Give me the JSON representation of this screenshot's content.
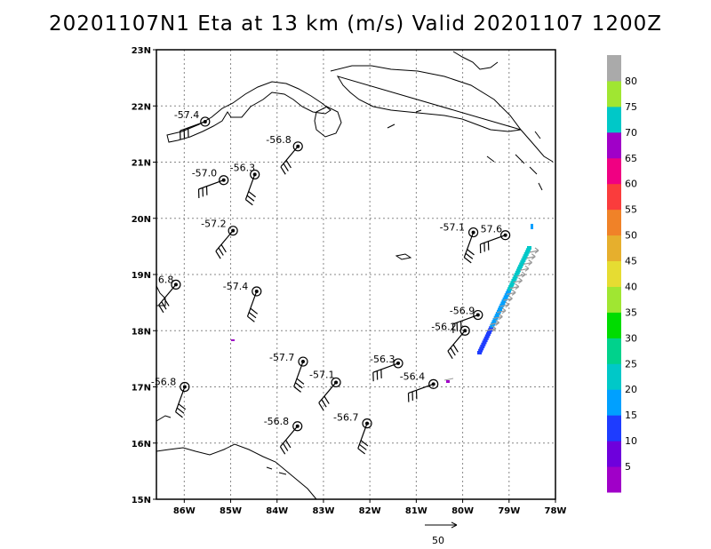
{
  "title": "20201107N1 Eta at 13 km (m/s) Valid 20201107  1200Z",
  "axes": {
    "lon_ticks": [
      "86W",
      "85W",
      "84W",
      "83W",
      "82W",
      "81W",
      "80W",
      "79W",
      "78W"
    ],
    "lat_ticks": [
      "23N",
      "22N",
      "21N",
      "20N",
      "19N",
      "18N",
      "17N",
      "16N",
      "15N"
    ]
  },
  "colorbar": {
    "labels": [
      "5",
      "10",
      "15",
      "20",
      "25",
      "30",
      "35",
      "40",
      "45",
      "50",
      "55",
      "60",
      "65",
      "70",
      "75",
      "80"
    ],
    "colors": [
      "#a000c8",
      "#6e00dc",
      "#1e3cff",
      "#00a0ff",
      "#00c8c8",
      "#00d28c",
      "#00dc00",
      "#a0e632",
      "#e6dc32",
      "#e6af2d",
      "#f08228",
      "#fa3c3c",
      "#f00082",
      "#a000c8",
      "#00c8c8",
      "#a0e632",
      "#aaaaaa"
    ]
  },
  "scale_label": "50",
  "stations": [
    {
      "label": "-57.4",
      "lon": -85.55,
      "lat": 21.72,
      "lx": -35,
      "ly": -4
    },
    {
      "label": "-56.8",
      "lon": -83.55,
      "lat": 21.28,
      "lx": -36,
      "ly": -4
    },
    {
      "label": "-56.3",
      "lon": -84.48,
      "lat": 20.78,
      "lx": -28,
      "ly": -4
    },
    {
      "label": "-57.0",
      "lon": -85.15,
      "lat": 20.68,
      "lx": -36,
      "ly": -4
    },
    {
      "label": "-57.2",
      "lon": -84.95,
      "lat": 19.78,
      "lx": -36,
      "ly": -4
    },
    {
      "label": "-57.1",
      "lon": -79.77,
      "lat": 19.75,
      "lx": -38,
      "ly": -2
    },
    {
      "label": "57.6",
      "lon": -79.08,
      "lat": 19.7,
      "lx": -28,
      "ly": -3
    },
    {
      "label": "6.8",
      "lon": -86.18,
      "lat": 18.82,
      "lx": -20,
      "ly": -2
    },
    {
      "label": "-57.4",
      "lon": -84.44,
      "lat": 18.7,
      "lx": -38,
      "ly": -2
    },
    {
      "label": "-56.9",
      "lon": -79.67,
      "lat": 18.28,
      "lx": -32,
      "ly": -1
    },
    {
      "label": "-56.2",
      "lon": -79.95,
      "lat": 18.0,
      "lx": -38,
      "ly": -1
    },
    {
      "label": "-57.7",
      "lon": -83.44,
      "lat": 17.45,
      "lx": -38,
      "ly": -1
    },
    {
      "label": "-56.3",
      "lon": -81.39,
      "lat": 17.42,
      "lx": -32,
      "ly": -1
    },
    {
      "label": "-57.1",
      "lon": -82.73,
      "lat": 17.08,
      "lx": -30,
      "ly": -5
    },
    {
      "label": "-56.8",
      "lon": -85.99,
      "lat": 17.0,
      "lx": -38,
      "ly": -2
    },
    {
      "label": "-56.4",
      "lon": -80.63,
      "lat": 17.05,
      "lx": -38,
      "ly": -5
    },
    {
      "label": "-56.8",
      "lon": -83.56,
      "lat": 16.3,
      "lx": -38,
      "ly": -2
    },
    {
      "label": "-56.7",
      "lon": -82.06,
      "lat": 16.35,
      "lx": -38,
      "ly": -3
    }
  ]
}
